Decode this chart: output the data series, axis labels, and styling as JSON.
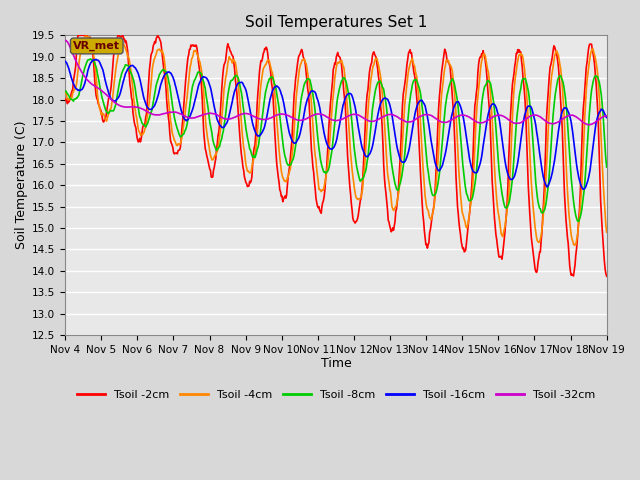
{
  "title": "Soil Temperatures Set 1",
  "xlabel": "Time",
  "ylabel": "Soil Temperature (C)",
  "ylim": [
    12.5,
    19.5
  ],
  "yticks": [
    12.5,
    13.0,
    13.5,
    14.0,
    14.5,
    15.0,
    15.5,
    16.0,
    16.5,
    17.0,
    17.5,
    18.0,
    18.5,
    19.0,
    19.5
  ],
  "xtick_labels": [
    "Nov 4",
    "Nov 5",
    "Nov 6",
    "Nov 7",
    "Nov 8",
    "Nov 9",
    "Nov 10",
    "Nov 11",
    "Nov 12",
    "Nov 13",
    "Nov 14",
    "Nov 15",
    "Nov 16",
    "Nov 17",
    "Nov 18",
    "Nov 19"
  ],
  "bg_color": "#e8e8e8",
  "grid_color": "#ffffff",
  "series_colors": [
    "#ff0000",
    "#ff8800",
    "#00cc00",
    "#0000ff",
    "#cc00cc"
  ],
  "series_labels": [
    "Tsoil -2cm",
    "Tsoil -4cm",
    "Tsoil -8cm",
    "Tsoil -16cm",
    "Tsoil -32cm"
  ],
  "vr_met_label": "VR_met",
  "vr_met_color": "#ccaa00",
  "vr_met_text_color": "#660000",
  "fig_bg": "#d8d8d8"
}
